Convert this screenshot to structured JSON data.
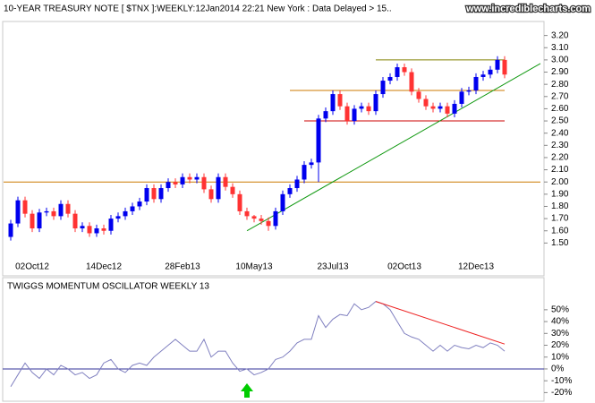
{
  "chart_data": [
    {
      "type": "candlestick",
      "title": "10-YEAR TREASURY NOTE [ $TNX ]:WEEKLY:12Jan2014 22:21 New York : Data Delayed > 15..",
      "source": "www.incrediblecharts.com",
      "categories": [
        null,
        null,
        null,
        "02Oct12",
        null,
        null,
        null,
        null,
        null,
        null,
        null,
        null,
        null,
        "14Dec12",
        null,
        null,
        null,
        null,
        null,
        null,
        null,
        null,
        null,
        null,
        "28Feb13",
        null,
        null,
        null,
        null,
        null,
        null,
        null,
        null,
        null,
        "10May13",
        null,
        null,
        null,
        null,
        null,
        null,
        null,
        null,
        null,
        null,
        "23Jul13",
        null,
        null,
        null,
        null,
        null,
        null,
        null,
        null,
        null,
        "02Oct13",
        null,
        null,
        null,
        null,
        null,
        null,
        null,
        null,
        null,
        "12Dec13",
        null,
        null,
        null,
        null
      ],
      "open": [
        1.55,
        1.66,
        1.85,
        1.74,
        1.62,
        1.75,
        1.76,
        1.72,
        1.82,
        1.74,
        1.62,
        1.64,
        1.58,
        1.62,
        1.6,
        1.7,
        1.72,
        1.76,
        1.8,
        1.84,
        1.95,
        1.86,
        1.95,
        2.0,
        1.98,
        2.04,
        2.02,
        2.04,
        1.94,
        1.86,
        2.04,
        1.96,
        1.9,
        1.76,
        1.72,
        1.7,
        1.68,
        1.64,
        1.76,
        1.9,
        1.95,
        2.02,
        2.14,
        2.16,
        2.52,
        2.58,
        2.72,
        2.62,
        2.5,
        2.6,
        2.62,
        2.58,
        2.72,
        2.83,
        2.86,
        2.94,
        2.9,
        2.74,
        2.68,
        2.62,
        2.6,
        2.62,
        2.56,
        2.64,
        2.74,
        2.75,
        2.86,
        2.88,
        2.92,
        3.0
      ],
      "high": [
        1.69,
        1.88,
        1.88,
        1.77,
        1.78,
        1.79,
        1.79,
        1.85,
        1.85,
        1.77,
        1.67,
        1.67,
        1.65,
        1.65,
        1.73,
        1.75,
        1.79,
        1.83,
        1.87,
        1.98,
        1.98,
        1.98,
        2.03,
        2.03,
        2.07,
        2.07,
        2.07,
        2.07,
        1.97,
        2.07,
        2.07,
        1.99,
        1.93,
        1.79,
        1.73,
        1.73,
        1.71,
        1.79,
        1.93,
        1.98,
        2.05,
        2.17,
        2.19,
        2.55,
        2.61,
        2.75,
        2.75,
        2.65,
        2.63,
        2.65,
        2.65,
        2.75,
        2.86,
        2.89,
        2.97,
        2.97,
        2.93,
        2.77,
        2.71,
        2.65,
        2.65,
        2.65,
        2.67,
        2.77,
        2.78,
        2.89,
        2.91,
        2.95,
        3.03,
        3.03
      ],
      "low": [
        1.52,
        1.63,
        1.71,
        1.59,
        1.59,
        1.72,
        1.69,
        1.69,
        1.71,
        1.59,
        1.59,
        1.55,
        1.55,
        1.57,
        1.57,
        1.67,
        1.69,
        1.73,
        1.77,
        1.81,
        1.83,
        1.83,
        1.92,
        1.95,
        1.95,
        1.99,
        1.99,
        1.91,
        1.83,
        1.83,
        1.93,
        1.87,
        1.73,
        1.69,
        1.67,
        1.65,
        1.6,
        1.61,
        1.73,
        1.87,
        1.92,
        1.99,
        2.11,
        2.0,
        2.49,
        2.55,
        2.59,
        2.47,
        2.47,
        2.57,
        2.55,
        2.55,
        2.69,
        2.8,
        2.83,
        2.87,
        2.71,
        2.65,
        2.59,
        2.57,
        2.57,
        2.53,
        2.53,
        2.61,
        2.71,
        2.72,
        2.83,
        2.85,
        2.89,
        2.85
      ],
      "close": [
        1.66,
        1.85,
        1.74,
        1.62,
        1.75,
        1.76,
        1.72,
        1.82,
        1.74,
        1.62,
        1.64,
        1.58,
        1.62,
        1.6,
        1.7,
        1.72,
        1.76,
        1.8,
        1.84,
        1.95,
        1.86,
        1.95,
        2.0,
        1.98,
        2.04,
        2.02,
        2.04,
        1.94,
        1.86,
        2.04,
        1.96,
        1.9,
        1.76,
        1.72,
        1.7,
        1.68,
        1.64,
        1.76,
        1.9,
        1.95,
        2.02,
        2.14,
        2.16,
        2.52,
        2.58,
        2.72,
        2.62,
        2.5,
        2.6,
        2.62,
        2.58,
        2.72,
        2.83,
        2.86,
        2.94,
        2.9,
        2.74,
        2.68,
        2.62,
        2.6,
        2.62,
        2.56,
        2.64,
        2.74,
        2.75,
        2.86,
        2.88,
        2.92,
        3.0,
        2.88
      ],
      "up_color": "#0000ee",
      "down_color": "#ff3333",
      "ylim": [
        1.4,
        3.3
      ],
      "yticks": [
        {
          "value": 1.5,
          "label": "1.50"
        },
        {
          "value": 1.6,
          "label": "1.60"
        },
        {
          "value": 1.7,
          "label": "1.70"
        },
        {
          "value": 1.8,
          "label": "1.80"
        },
        {
          "value": 1.9,
          "label": "1.90"
        },
        {
          "value": 2.0,
          "label": "2.00"
        },
        {
          "value": 2.1,
          "label": "2.10"
        },
        {
          "value": 2.2,
          "label": "2.20"
        },
        {
          "value": 2.3,
          "label": "2.30"
        },
        {
          "value": 2.4,
          "label": "2.40"
        },
        {
          "value": 2.5,
          "label": "2.50"
        },
        {
          "value": 2.6,
          "label": "2.60"
        },
        {
          "value": 2.7,
          "label": "2.70"
        },
        {
          "value": 2.8,
          "label": "2.80"
        },
        {
          "value": 2.9,
          "label": "2.90"
        },
        {
          "value": 3.0,
          "label": "3.00"
        },
        {
          "value": 3.1,
          "label": "3.10"
        },
        {
          "value": 3.2,
          "label": "3.20"
        }
      ],
      "levels": [
        {
          "value": 2.0,
          "from": -1,
          "to": 74,
          "color": "#cc7a00"
        },
        {
          "value": 2.5,
          "from": 41,
          "to": 69,
          "color": "#cc0000"
        },
        {
          "value": 2.75,
          "from": 39,
          "to": 69,
          "color": "#cc7a00"
        },
        {
          "value": 3.0,
          "from": 51,
          "to": 69,
          "color": "#808000"
        }
      ],
      "trendline": {
        "from": [
          33,
          1.6
        ],
        "to": [
          74,
          2.97
        ],
        "color": "#119911"
      }
    },
    {
      "type": "line",
      "title": "TWIGGS MOMENTUM OSCILLATOR WEEKLY 13",
      "values": [
        -15,
        -5,
        5,
        -3,
        -8,
        0,
        -5,
        3,
        0,
        -5,
        -3,
        -8,
        -5,
        5,
        8,
        0,
        -3,
        3,
        5,
        3,
        10,
        15,
        20,
        25,
        20,
        15,
        15,
        25,
        10,
        15,
        15,
        5,
        -2,
        0,
        -5,
        -3,
        0,
        8,
        10,
        15,
        22,
        25,
        25,
        45,
        35,
        42,
        46,
        45,
        55,
        50,
        52,
        57,
        55,
        50,
        40,
        30,
        27,
        25,
        20,
        15,
        20,
        15,
        20,
        18,
        17,
        20,
        18,
        22,
        20,
        15
      ],
      "color": "#8080c0",
      "zero_color": "#333399",
      "ylim": [
        -25,
        62
      ],
      "yticks": [
        {
          "value": -20,
          "label": "-20%"
        },
        {
          "value": -10,
          "label": "-10%"
        },
        {
          "value": 0,
          "label": "0%"
        },
        {
          "value": 10,
          "label": "10%"
        },
        {
          "value": 20,
          "label": "20%"
        },
        {
          "value": 30,
          "label": "30%"
        },
        {
          "value": 40,
          "label": "40%"
        },
        {
          "value": 50,
          "label": "50%"
        }
      ],
      "trendline": {
        "from": [
          51,
          57
        ],
        "to": [
          69,
          21
        ],
        "color": "#ee2222"
      },
      "marker": {
        "index": 33,
        "color": "#00cc00"
      }
    }
  ]
}
